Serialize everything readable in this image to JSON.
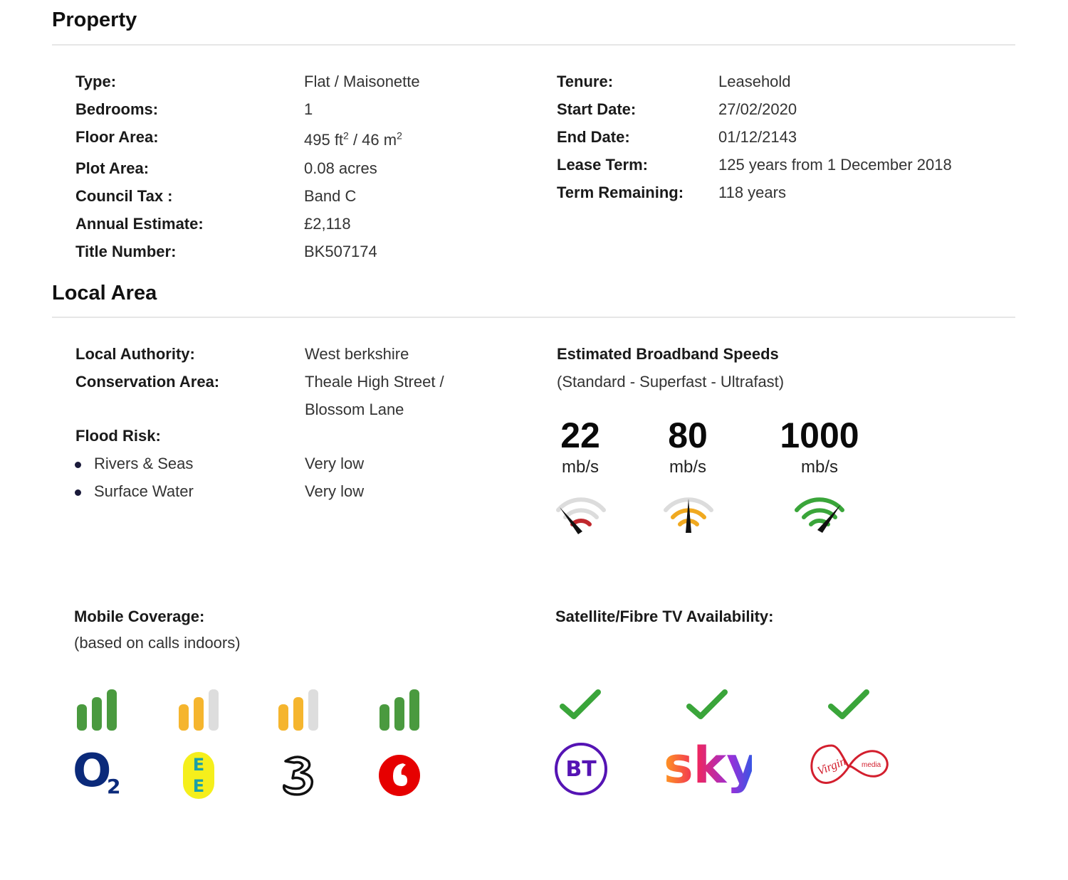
{
  "property": {
    "title": "Property",
    "left_rows": [
      {
        "label": "Type:",
        "value": "Flat / Maisonette"
      },
      {
        "label": "Bedrooms:",
        "value": "1"
      },
      {
        "label": "Floor Area:",
        "value_pre": "495 ft",
        "value_sup1": "2",
        "value_mid": " / 46 m",
        "value_sup2": "2"
      },
      {
        "label": "Plot Area:",
        "value": "0.08 acres"
      },
      {
        "label": "Council Tax :",
        "value": "Band C"
      },
      {
        "label": "Annual Estimate:",
        "value": "£2,118"
      },
      {
        "label": "Title Number:",
        "value": "BK507174"
      }
    ],
    "right_rows": [
      {
        "label": "Tenure:",
        "value": "Leasehold"
      },
      {
        "label": "Start Date:",
        "value": "27/02/2020"
      },
      {
        "label": "End Date:",
        "value": "01/12/2143"
      },
      {
        "label": "Lease Term:",
        "value": "125 years from 1 December 2018"
      },
      {
        "label": "Term Remaining:",
        "value": "118 years"
      }
    ]
  },
  "local_area": {
    "title": "Local Area",
    "authority_label": "Local Authority:",
    "authority_value": "West berkshire",
    "conservation_label": "Conservation Area:",
    "conservation_value_line1": "Theale High Street /",
    "conservation_value_line2": "Blossom Lane",
    "flood_label": "Flood Risk:",
    "flood_rows": [
      {
        "label": "Rivers & Seas",
        "value": "Very low"
      },
      {
        "label": "Surface Water",
        "value": "Very low"
      }
    ]
  },
  "broadband": {
    "title": "Estimated Broadband Speeds",
    "subtitle": "(Standard - Superfast - Ultrafast)",
    "speeds": [
      {
        "value": "22",
        "unit": "mb/s",
        "level": "low",
        "color": "#c0282d"
      },
      {
        "value": "80",
        "unit": "mb/s",
        "level": "medium",
        "color": "#f0a920"
      },
      {
        "value": "1000",
        "unit": "mb/s",
        "level": "high",
        "color": "#3aa53a"
      }
    ]
  },
  "mobile": {
    "title": "Mobile Coverage:",
    "subtitle": "(based on calls indoors)",
    "operators": [
      {
        "name": "O2",
        "bars_filled": 3,
        "bar_color": "#4a9a3f"
      },
      {
        "name": "EE",
        "bars_filled": 2,
        "bar_color": "#f5b52e"
      },
      {
        "name": "Three",
        "bars_filled": 2,
        "bar_color": "#f5b52e"
      },
      {
        "name": "Vodafone",
        "bars_filled": 3,
        "bar_color": "#4a9a3f"
      }
    ],
    "logo_text": {
      "o2": "O",
      "o2_sub": "2",
      "ee_top": "E",
      "ee_bottom": "E"
    }
  },
  "tv": {
    "title": "Satellite/Fibre TV Availability:",
    "providers": [
      {
        "name": "BT",
        "available": true
      },
      {
        "name": "sky",
        "available": true
      },
      {
        "name": "Virgin media",
        "available": true
      }
    ],
    "logo_text": {
      "bt": "BT",
      "sky": "sky",
      "virgin": "Virgin",
      "media": "media"
    },
    "check_color": "#3aa53a"
  }
}
